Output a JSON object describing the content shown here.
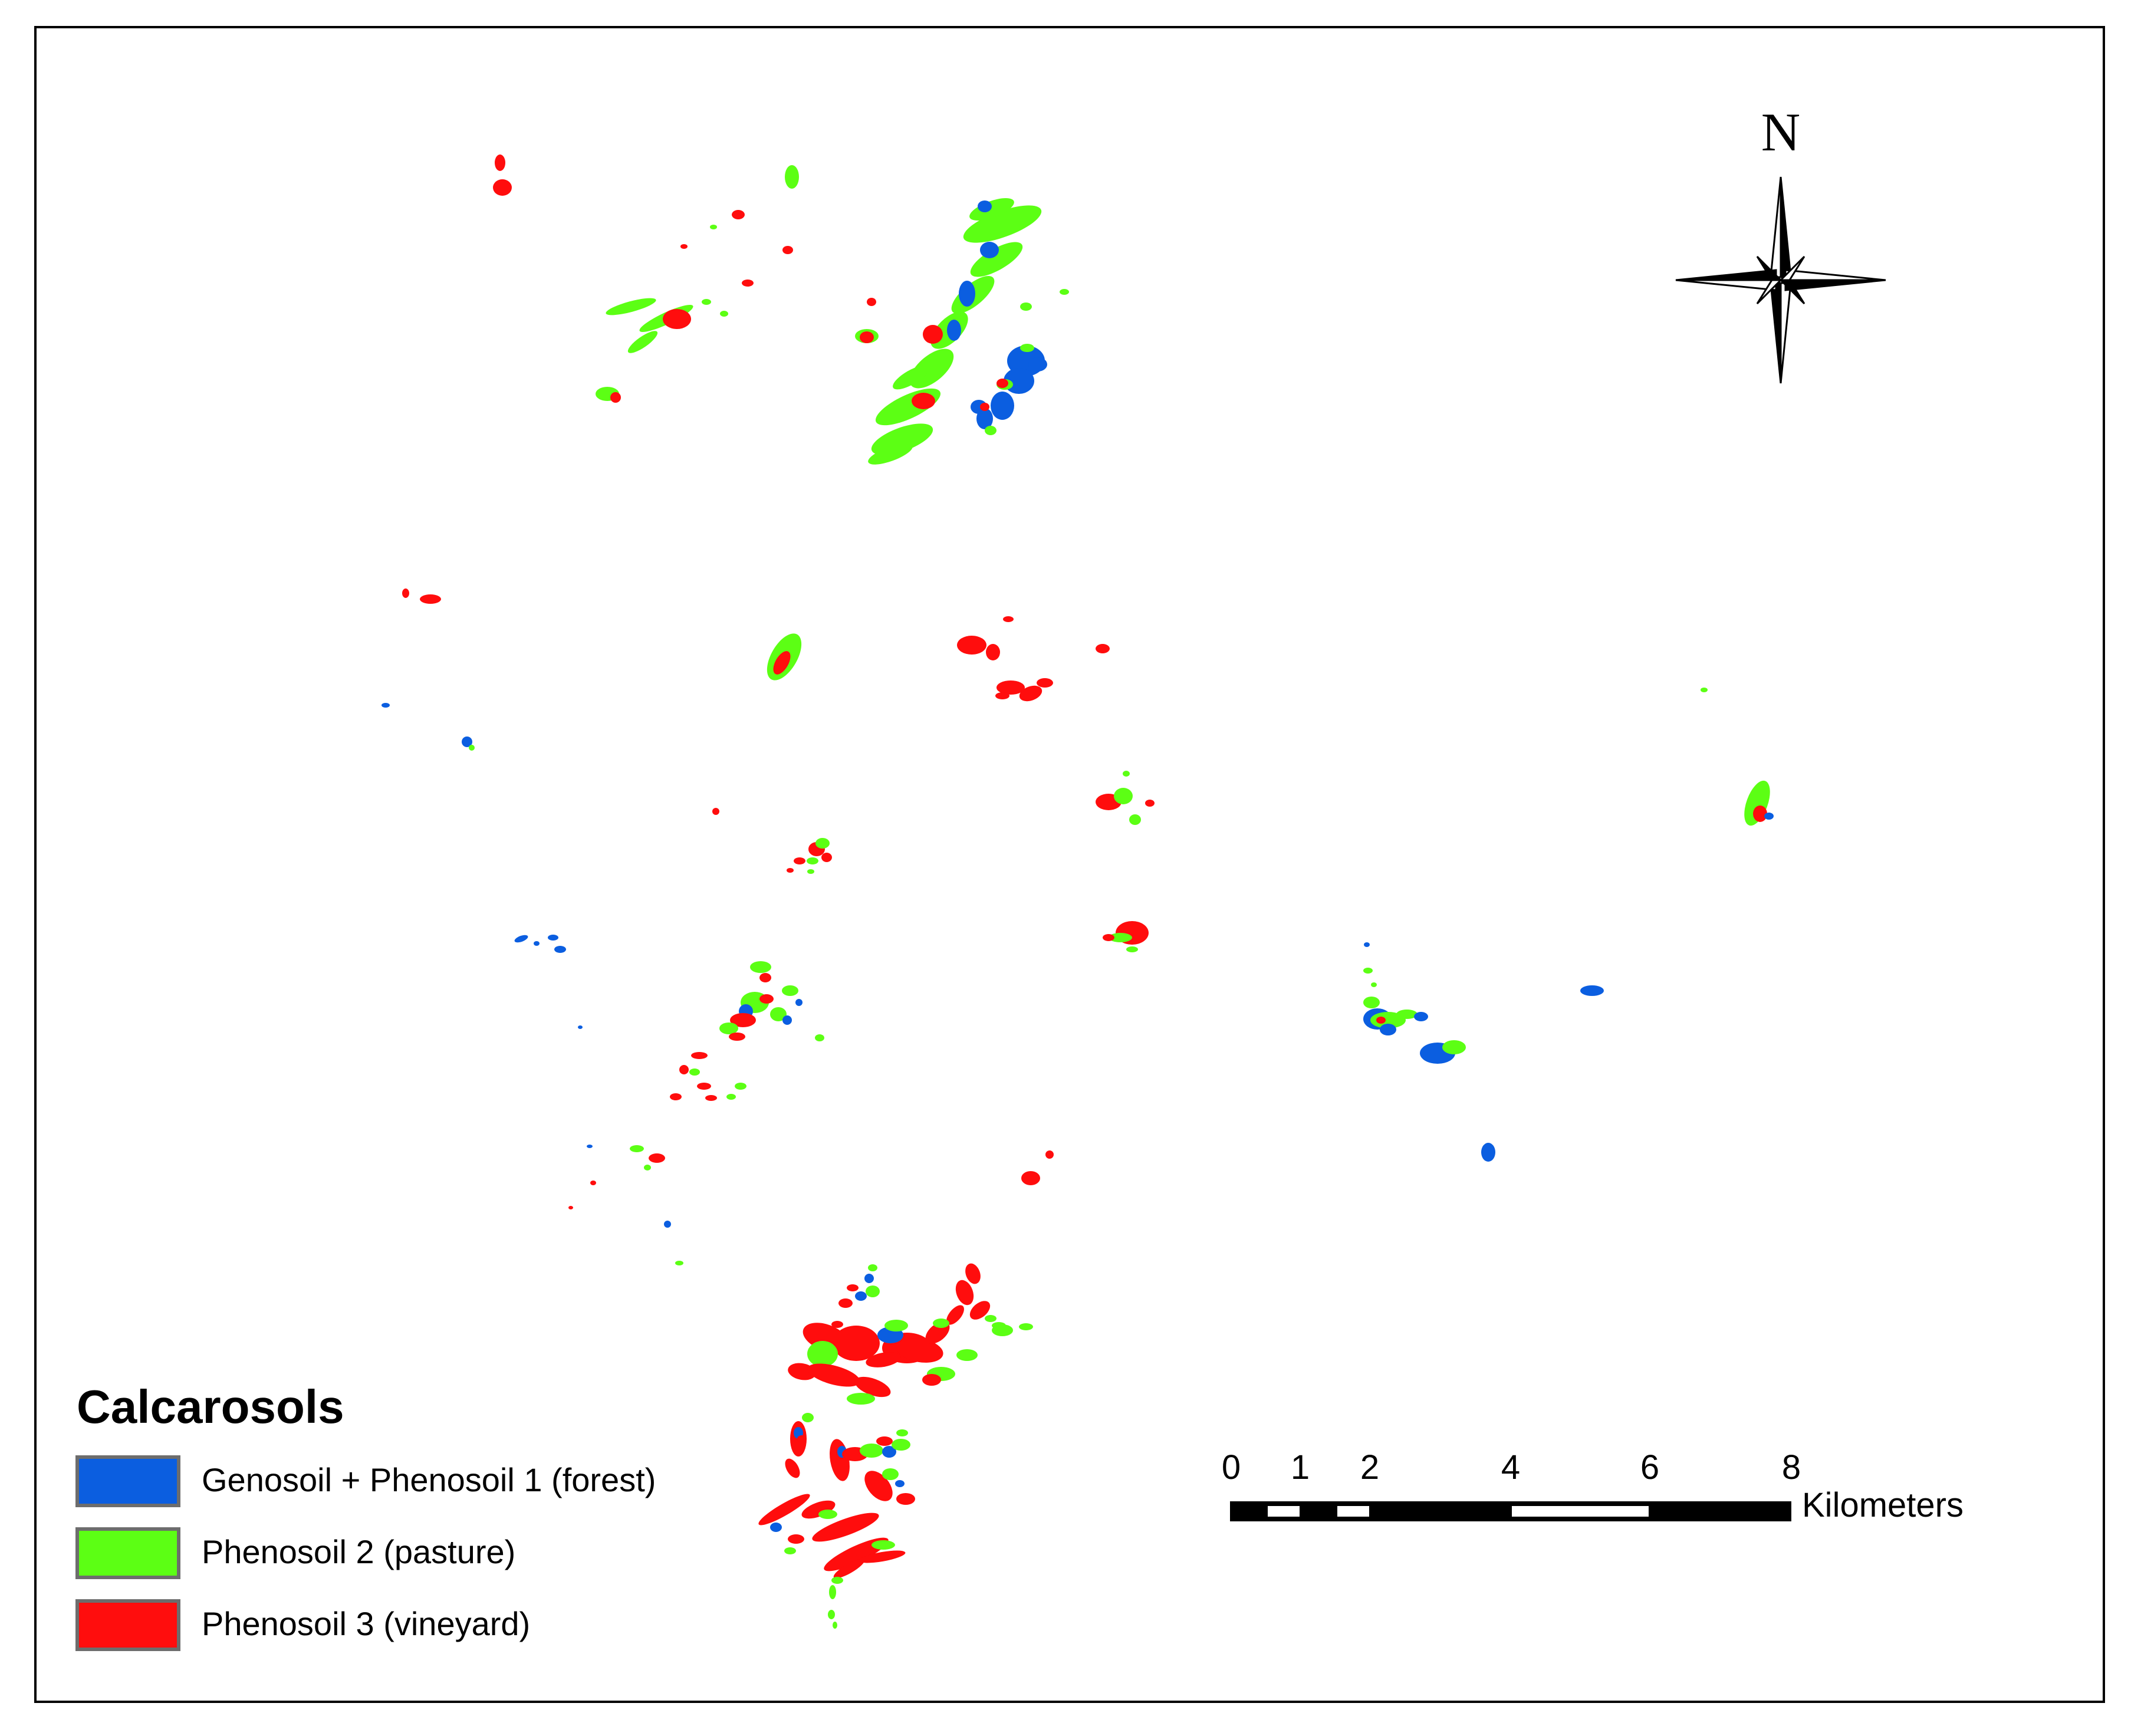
{
  "north_arrow": {
    "label": "N"
  },
  "legend": {
    "title": "Calcarosols",
    "items": [
      {
        "label": "Genosoil + Phenosoil 1 (forest)",
        "color": "#0b5ee0"
      },
      {
        "label": "Phenosoil 2 (pasture)",
        "color": "#5cff14"
      },
      {
        "label": "Phenosoil 3 (vineyard)",
        "color": "#ff0d0d"
      }
    ]
  },
  "scale_bar": {
    "ticks": [
      "0",
      "1",
      "2",
      "4",
      "6",
      "8"
    ],
    "unit": "Kilometers"
  }
}
